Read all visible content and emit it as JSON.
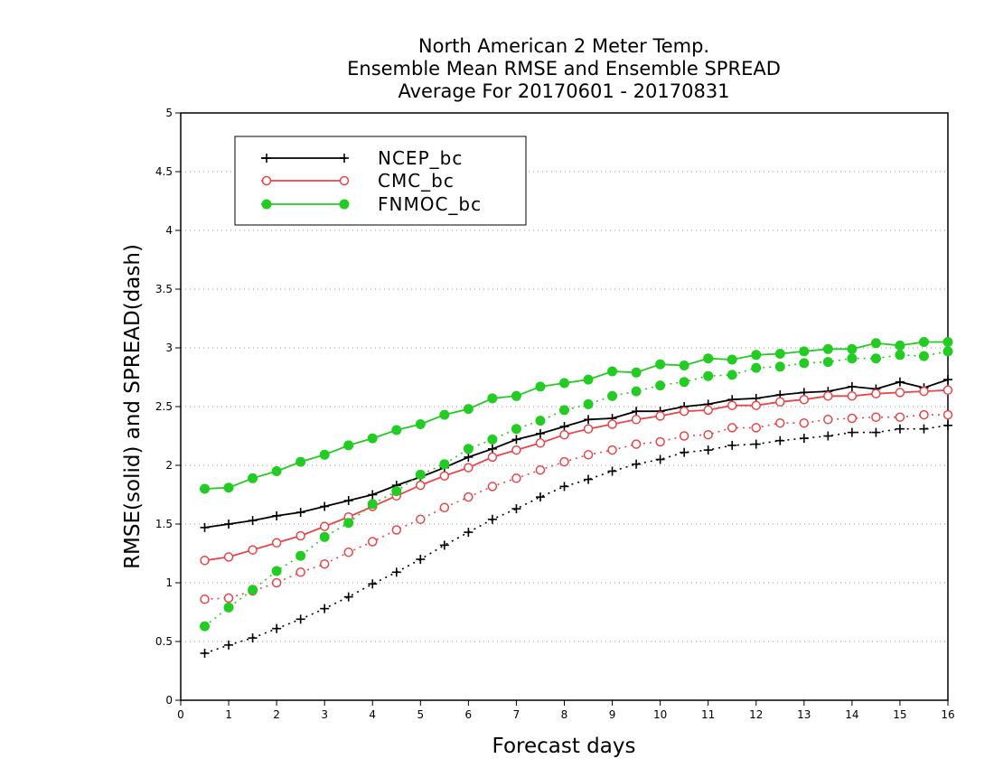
{
  "chart_data": {
    "type": "line",
    "title": [
      "North American 2 Meter Temp.",
      "Ensemble Mean RMSE and Ensemble SPREAD",
      "Average For 20170601 - 20170831"
    ],
    "xlabel": "Forecast days",
    "ylabel": "RMSE(solid) and SPREAD(dash)",
    "xlim": [
      0,
      16
    ],
    "ylim": [
      0,
      5
    ],
    "xticks": [
      "0",
      "1",
      "2",
      "3",
      "4",
      "5",
      "6",
      "7",
      "8",
      "9",
      "10",
      "11",
      "12",
      "13",
      "14",
      "15",
      "16"
    ],
    "yticks": [
      "0",
      "0.5",
      "1",
      "1.5",
      "2",
      "2.5",
      "3",
      "3.5",
      "4",
      "4.5",
      "5"
    ],
    "grid": "horizontal dotted",
    "legend_position": "top-left",
    "x": [
      0.5,
      1,
      1.5,
      2,
      2.5,
      3,
      3.5,
      4,
      4.5,
      5,
      5.5,
      6,
      6.5,
      7,
      7.5,
      8,
      8.5,
      9,
      9.5,
      10,
      10.5,
      11,
      11.5,
      12,
      12.5,
      13,
      13.5,
      14,
      14.5,
      15,
      15.5,
      16
    ],
    "series": [
      {
        "name": "NCEP_bc",
        "color": "#000000",
        "marker": "plus",
        "rmse": [
          1.47,
          1.5,
          1.53,
          1.57,
          1.6,
          1.65,
          1.7,
          1.75,
          1.83,
          1.9,
          1.98,
          2.07,
          2.14,
          2.22,
          2.27,
          2.33,
          2.39,
          2.4,
          2.46,
          2.46,
          2.5,
          2.52,
          2.56,
          2.57,
          2.6,
          2.62,
          2.63,
          2.67,
          2.65,
          2.71,
          2.66,
          2.73
        ],
        "spread": [
          0.4,
          0.47,
          0.53,
          0.61,
          0.69,
          0.78,
          0.88,
          0.99,
          1.09,
          1.2,
          1.32,
          1.43,
          1.54,
          1.63,
          1.73,
          1.82,
          1.88,
          1.95,
          2.01,
          2.05,
          2.11,
          2.13,
          2.17,
          2.18,
          2.21,
          2.23,
          2.25,
          2.28,
          2.28,
          2.31,
          2.31,
          2.34
        ]
      },
      {
        "name": "CMC_bc",
        "color": "#e8464a",
        "marker": "open-circle",
        "rmse": [
          1.19,
          1.22,
          1.28,
          1.34,
          1.4,
          1.48,
          1.56,
          1.65,
          1.74,
          1.83,
          1.91,
          1.98,
          2.07,
          2.13,
          2.19,
          2.26,
          2.31,
          2.35,
          2.39,
          2.42,
          2.46,
          2.47,
          2.51,
          2.51,
          2.54,
          2.56,
          2.59,
          2.59,
          2.61,
          2.62,
          2.63,
          2.64
        ],
        "spread": [
          0.86,
          0.87,
          0.93,
          1.0,
          1.09,
          1.16,
          1.26,
          1.35,
          1.45,
          1.54,
          1.64,
          1.73,
          1.82,
          1.89,
          1.96,
          2.03,
          2.09,
          2.13,
          2.18,
          2.2,
          2.25,
          2.26,
          2.32,
          2.32,
          2.36,
          2.36,
          2.39,
          2.4,
          2.41,
          2.41,
          2.43,
          2.43
        ]
      },
      {
        "name": "FNMOC_bc",
        "color": "#22cc22",
        "marker": "filled-circle",
        "rmse": [
          1.8,
          1.81,
          1.89,
          1.95,
          2.03,
          2.09,
          2.17,
          2.23,
          2.3,
          2.35,
          2.43,
          2.48,
          2.57,
          2.59,
          2.67,
          2.7,
          2.73,
          2.8,
          2.79,
          2.86,
          2.85,
          2.91,
          2.9,
          2.94,
          2.95,
          2.97,
          2.99,
          2.99,
          3.04,
          3.02,
          3.05,
          3.05
        ],
        "spread": [
          0.63,
          0.79,
          0.94,
          1.1,
          1.23,
          1.39,
          1.51,
          1.67,
          1.78,
          1.92,
          2.01,
          2.14,
          2.22,
          2.31,
          2.38,
          2.47,
          2.52,
          2.59,
          2.63,
          2.68,
          2.71,
          2.76,
          2.77,
          2.83,
          2.84,
          2.87,
          2.88,
          2.91,
          2.91,
          2.94,
          2.93,
          2.97
        ]
      }
    ]
  }
}
